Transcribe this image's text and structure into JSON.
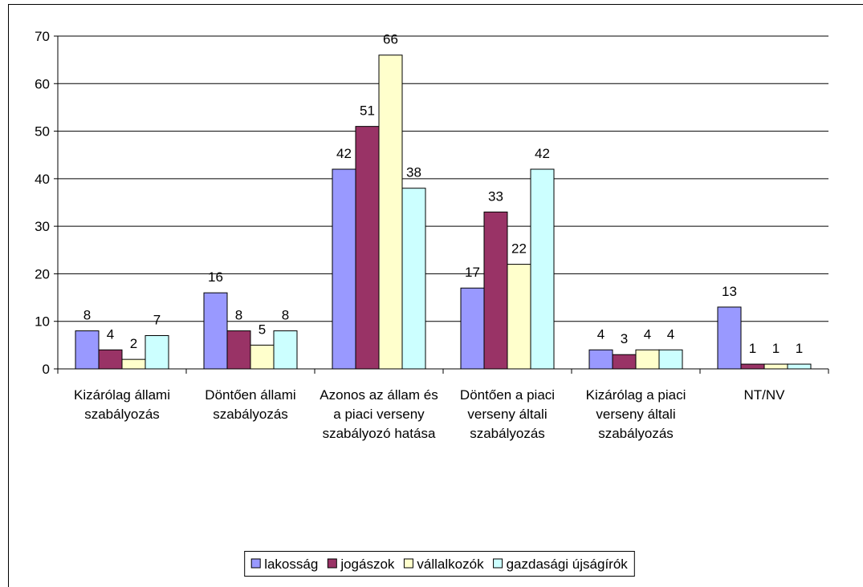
{
  "chart_data": {
    "type": "bar",
    "categories": [
      "Kizárólag állami szabályozás",
      "Döntően állami szabályozás",
      "Azonos az állam és a piaci verseny szabályozó hatása",
      "Döntően a piaci verseny általi szabályozás",
      "Kizárólag a piaci verseny általi szabályozás",
      "NT/NV"
    ],
    "series": [
      {
        "name": "lakosság",
        "color": "#9999ff",
        "values": [
          8,
          16,
          42,
          17,
          4,
          13
        ]
      },
      {
        "name": "jogászok",
        "color": "#993366",
        "values": [
          4,
          8,
          51,
          33,
          3,
          1
        ]
      },
      {
        "name": "vállalkozók",
        "color": "#ffffcc",
        "values": [
          2,
          5,
          66,
          22,
          4,
          1
        ]
      },
      {
        "name": "gazdasági újságírók",
        "color": "#ccffff",
        "values": [
          7,
          8,
          38,
          42,
          4,
          1
        ]
      }
    ],
    "ylim": [
      0,
      70
    ],
    "yticks": [
      0,
      10,
      20,
      30,
      40,
      50,
      60,
      70
    ],
    "grid": true,
    "legend": "bottom"
  }
}
